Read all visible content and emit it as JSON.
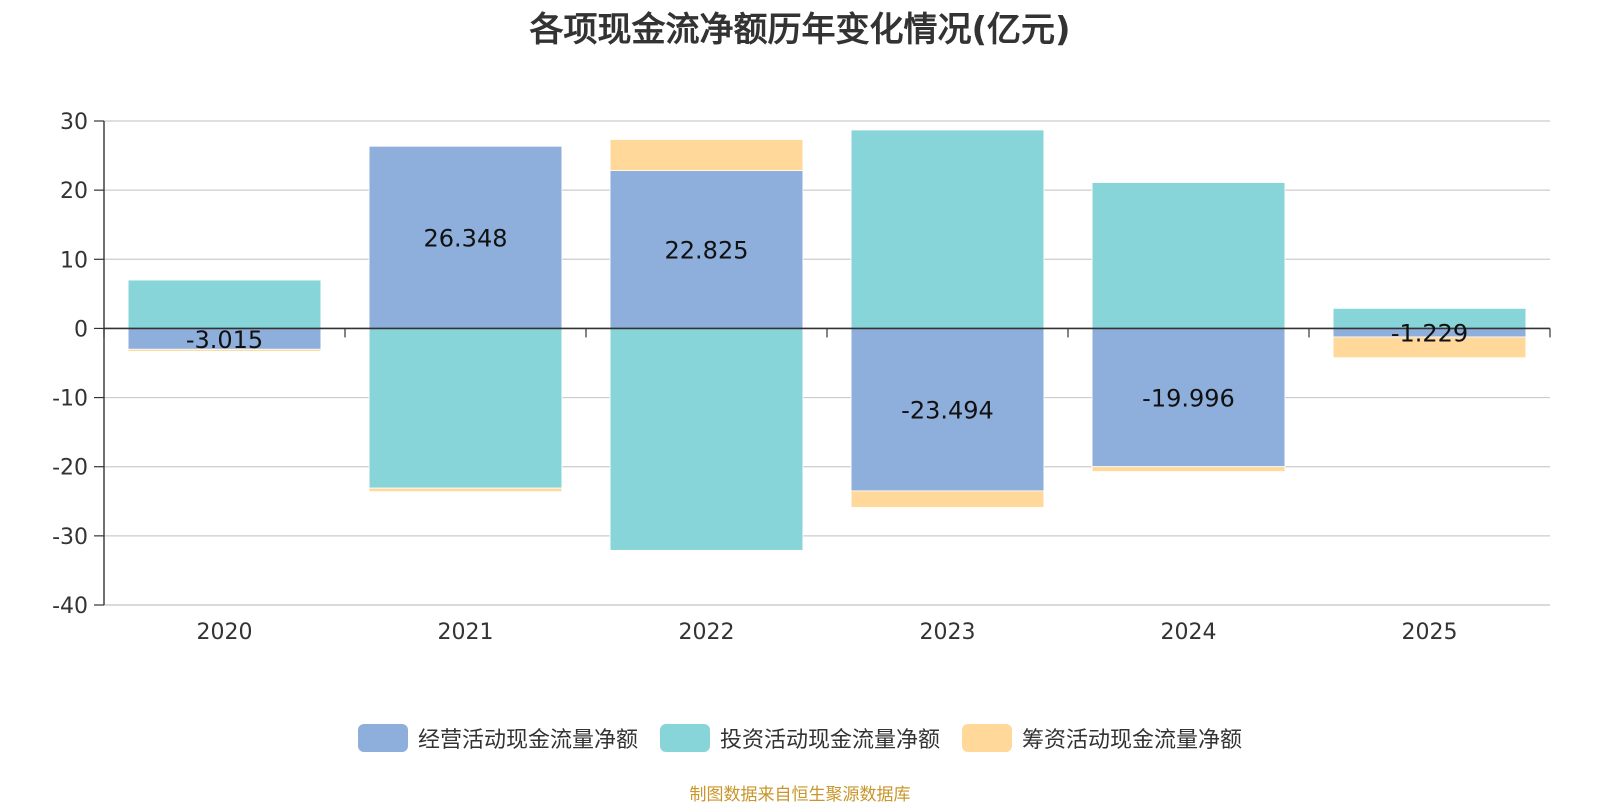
{
  "chart_data": {
    "type": "bar",
    "stacked": true,
    "title": "各项现金流净额历年变化情况(亿元)",
    "categories": [
      "2020",
      "2021",
      "2022",
      "2023",
      "2024",
      "2025"
    ],
    "series": [
      {
        "name": "经营活动现金流量净额",
        "color": "#8eaedb",
        "values": [
          -3.015,
          26.348,
          22.825,
          -23.494,
          -19.996,
          -1.229
        ],
        "labels": [
          "-3.015",
          "26.348",
          "22.825",
          "-23.494",
          "-19.996",
          "-1.229"
        ]
      },
      {
        "name": "投资活动现金流量净额",
        "color": "#88d5d9",
        "values": [
          7.0,
          -23.1,
          -32.1,
          28.7,
          21.1,
          2.9
        ]
      },
      {
        "name": "筹资活动现金流量净额",
        "color": "#ffd89a",
        "values": [
          -0.3,
          -0.5,
          4.5,
          -2.4,
          -0.7,
          -3.0
        ]
      }
    ],
    "ylim": [
      -40,
      30
    ],
    "yticks": [
      30,
      20,
      10,
      0,
      -10,
      -20,
      -30,
      -40
    ],
    "grid": true,
    "legend": "bottom"
  },
  "footer": {
    "source": "制图数据来自恒生聚源数据库"
  }
}
